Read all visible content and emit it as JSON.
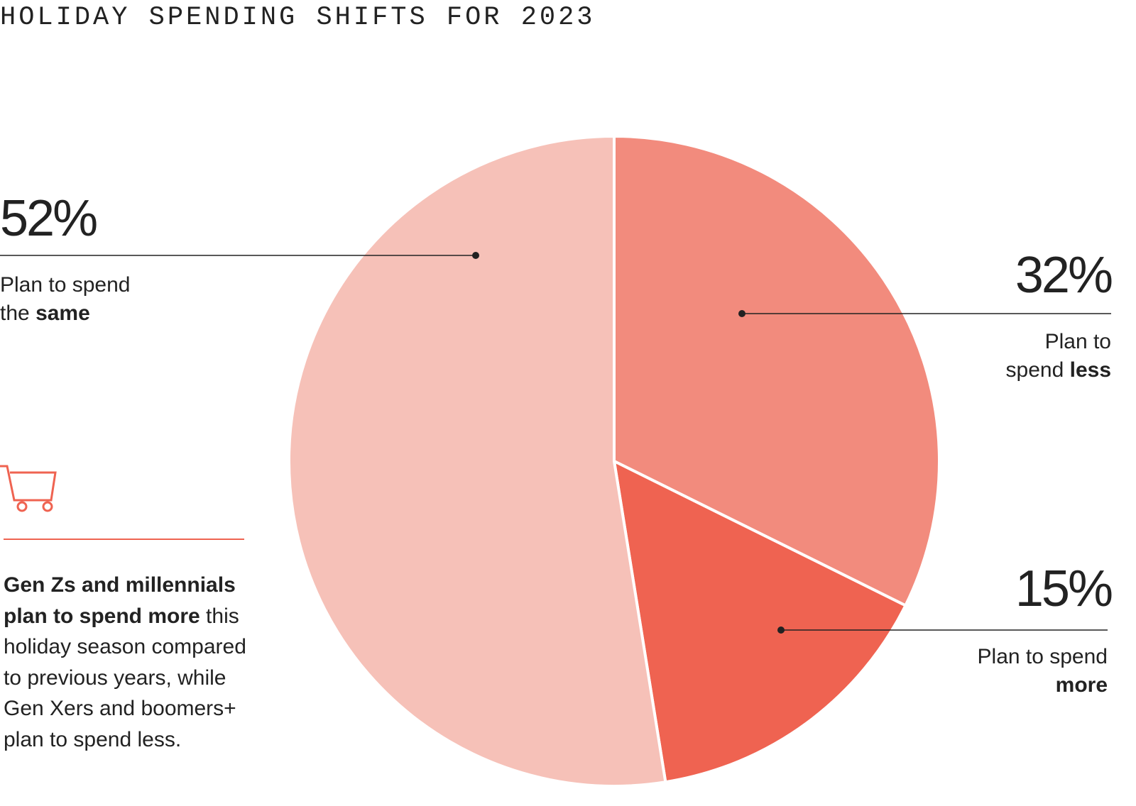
{
  "chart_data": {
    "type": "pie",
    "title": "HOLIDAY SPENDING SHIFTS FOR 2023",
    "values": [
      32,
      15,
      52
    ],
    "value_labels": [
      "32%",
      "15%",
      "52%"
    ],
    "labels": [
      {
        "text": "Plan to spend",
        "bold": "less"
      },
      {
        "text": "Plan to spend",
        "bold": "more"
      },
      {
        "text": "Plan to spend the",
        "bold": "same"
      }
    ],
    "colors": [
      "#f28b7d",
      "#ef6351",
      "#f6c1b8"
    ],
    "note": {
      "bold": "Gen Zs and millennials plan to spend more",
      "text": "this holiday season compared to previous years, while Gen Xers and boomers+ plan to spend less."
    }
  }
}
